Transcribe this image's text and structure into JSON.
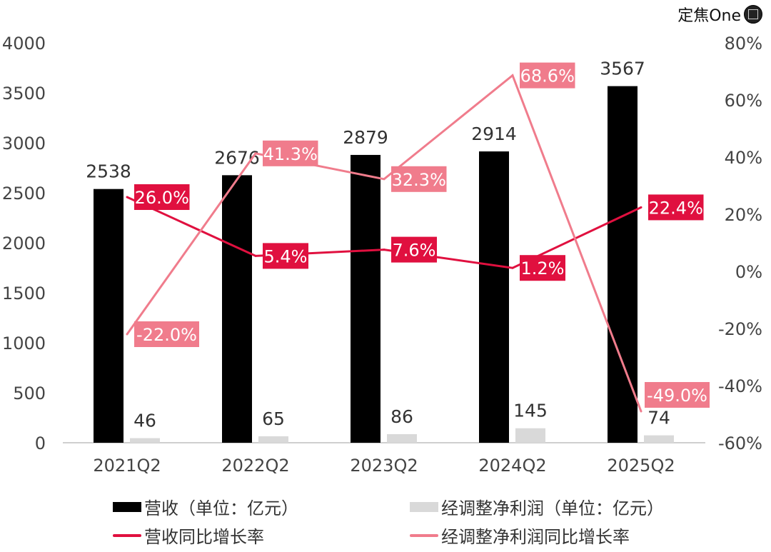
{
  "logo": {
    "text": "定焦One"
  },
  "chart_data": {
    "type": "bar+line",
    "categories": [
      "2021Q2",
      "2022Q2",
      "2023Q2",
      "2024Q2",
      "2025Q2"
    ],
    "bar_series": [
      {
        "name": "营收（单位：亿元）",
        "values": [
          2538,
          2676,
          2879,
          2914,
          3567
        ],
        "color": "#000000"
      },
      {
        "name": "经调整净利润（单位：亿元）",
        "values": [
          46,
          65,
          86,
          145,
          74
        ],
        "color": "#d9d9d9"
      }
    ],
    "line_series": [
      {
        "name": "营收同比增长率",
        "values": [
          26.0,
          5.4,
          7.6,
          1.2,
          22.4
        ],
        "labels": [
          "26.0%",
          "5.4%",
          "7.6%",
          "1.2%",
          "22.4%"
        ],
        "color": "#e0103f"
      },
      {
        "name": "经调整净利润同比增长率",
        "values": [
          -22.0,
          41.3,
          32.3,
          68.6,
          -49.0
        ],
        "labels": [
          "-22.0%",
          "41.3%",
          "32.3%",
          "68.6%",
          "-49.0%"
        ],
        "color": "#f07c8c"
      }
    ],
    "y_left": {
      "range": [
        0,
        4000
      ],
      "ticks": [
        "0",
        "500",
        "1000",
        "1500",
        "2000",
        "2500",
        "3000",
        "3500",
        "4000"
      ]
    },
    "y_right": {
      "range": [
        -60,
        80
      ],
      "ticks": [
        "-60%",
        "-40%",
        "-20%",
        "0%",
        "20%",
        "40%",
        "60%",
        "80%"
      ]
    },
    "grid": false,
    "legend_position": "bottom"
  }
}
